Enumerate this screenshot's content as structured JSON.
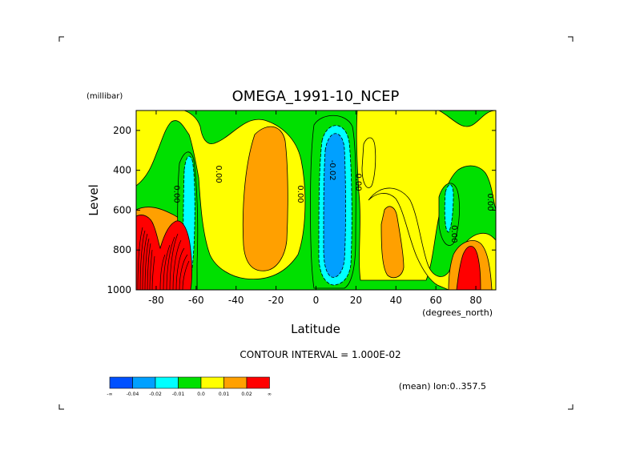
{
  "chart_data": {
    "type": "contour",
    "title": "OMEGA_1991-10_NCEP",
    "xlabel": "Latitude",
    "xunits": "(degrees_north)",
    "ylabel": "Level",
    "yunits": "(millibar)",
    "xlim": [
      -90,
      90
    ],
    "ylim": [
      1000,
      100
    ],
    "xticks": [
      -80,
      -60,
      -40,
      -20,
      0,
      20,
      40,
      60,
      80
    ],
    "yticks": [
      200,
      400,
      600,
      800,
      1000
    ],
    "contour_interval_text": "CONTOUR INTERVAL = 1.000E-02",
    "mean_text": "(mean) lon:0..357.5",
    "contour_labels": [
      {
        "text": "0.00",
        "lat": -71,
        "level": 520
      },
      {
        "text": "0.00",
        "lat": -50,
        "level": 420
      },
      {
        "text": "0.00",
        "lat": -9,
        "level": 520
      },
      {
        "text": "-0.02",
        "lat": 7,
        "level": 400
      },
      {
        "text": "0.00",
        "lat": 20,
        "level": 460
      },
      {
        "text": "0.00",
        "lat": 68,
        "level": 720
      },
      {
        "text": "0.00",
        "lat": 86,
        "level": 560
      }
    ],
    "legend": {
      "colors": [
        "#0050ff",
        "#00a0ff",
        "#00ffff",
        "#00e000",
        "#ffff00",
        "#ffa000",
        "#ff0000"
      ],
      "labels": [
        "-∞",
        "-0.04",
        "-0.02",
        "-0.01",
        "0.0",
        "0.01",
        "0.02",
        "∞"
      ]
    },
    "regions": [
      {
        "level": "-0.02",
        "color": "#00a0ff",
        "lat_center": 8,
        "level_top": 200,
        "level_bottom": 930
      },
      {
        "level": "-0.01",
        "color": "#00ffff",
        "lat_center": -63,
        "level_top": 320,
        "level_bottom": 1000
      },
      {
        "level": "-0.01",
        "color": "#00ffff",
        "lat_center": 68,
        "level_top": 520,
        "level_bottom": 720
      },
      {
        "level": "0.01",
        "color": "#ffa000",
        "lat_center": -26,
        "level_top": 230,
        "level_bottom": 900
      },
      {
        "level": "0.01",
        "color": "#ffa000",
        "lat_center": 42,
        "level_top": 660,
        "level_bottom": 930
      },
      {
        "level": "0.02",
        "color": "#ff0000",
        "lat_center": -80,
        "level_top": 650,
        "level_bottom": 1000
      },
      {
        "level": "0.02",
        "color": "#ff0000",
        "lat_center": 78,
        "level_top": 820,
        "level_bottom": 1000
      }
    ]
  }
}
